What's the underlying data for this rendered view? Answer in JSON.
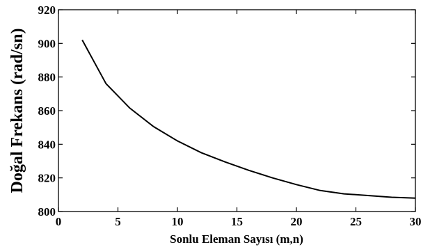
{
  "chart_data": {
    "type": "line",
    "title": "",
    "xlabel": "Sonlu Eleman Sayısı (m,n)",
    "ylabel": "Doğal Frekans (rad/sn)",
    "xlim": [
      0,
      30
    ],
    "ylim": [
      800,
      920
    ],
    "xticks": [
      0,
      5,
      10,
      15,
      20,
      25,
      30
    ],
    "yticks": [
      800,
      820,
      840,
      860,
      880,
      900,
      920
    ],
    "grid": false,
    "legend": "none",
    "line_color": "#000000",
    "series": [
      {
        "x": [
          2,
          4,
          6,
          8,
          10,
          12,
          14,
          16,
          18,
          20,
          22,
          24,
          26,
          28,
          30
        ],
        "y": [
          902,
          876,
          861.5,
          850.5,
          842,
          835,
          829.5,
          824.5,
          820,
          816,
          812.5,
          810.5,
          809.5,
          808.5,
          808
        ]
      }
    ]
  }
}
